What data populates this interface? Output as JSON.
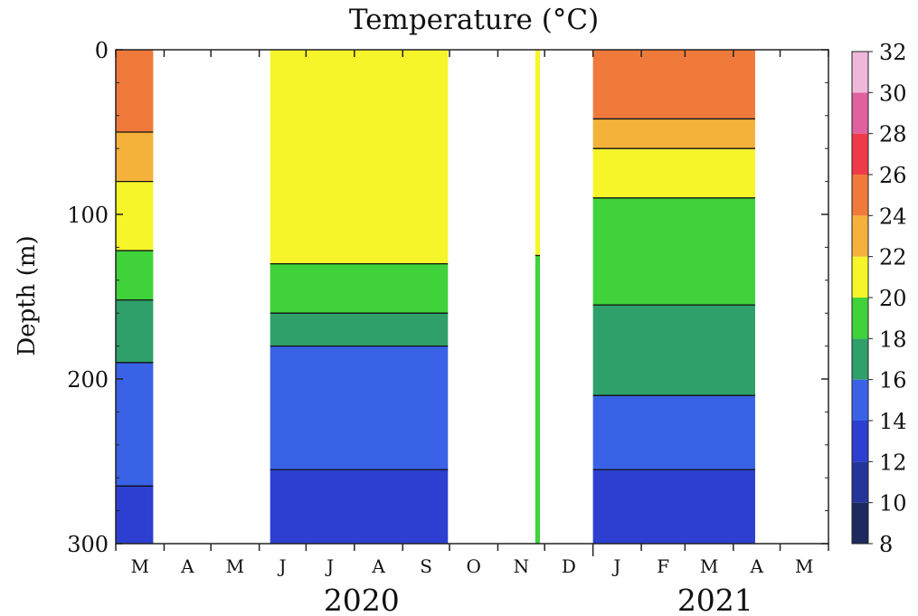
{
  "chart_data": {
    "type": "heatmap",
    "title": "Temperature (°C)",
    "ylabel": "Depth (m)",
    "xlabel": "",
    "ylim": [
      300,
      0
    ],
    "y_ticks": [
      "0",
      "100",
      "200",
      "300"
    ],
    "months": [
      "M",
      "A",
      "M",
      "J",
      "J",
      "A",
      "S",
      "O",
      "N",
      "D",
      "J",
      "F",
      "M",
      "A",
      "M"
    ],
    "years": [
      "2020",
      "2021"
    ],
    "colorbar": {
      "ticks": [
        "32",
        "30",
        "28",
        "26",
        "24",
        "22",
        "20",
        "18",
        "16",
        "14",
        "12",
        "10",
        "8"
      ],
      "levels": [
        {
          "from": 8,
          "to": 10,
          "color": "#1c2a5e"
        },
        {
          "from": 10,
          "to": 12,
          "color": "#23349a"
        },
        {
          "from": 12,
          "to": 14,
          "color": "#2c3fd0"
        },
        {
          "from": 14,
          "to": 16,
          "color": "#3a62e6"
        },
        {
          "from": 16,
          "to": 18,
          "color": "#2fa06a"
        },
        {
          "from": 18,
          "to": 20,
          "color": "#3fd23a"
        },
        {
          "from": 20,
          "to": 22,
          "color": "#f5f52a"
        },
        {
          "from": 22,
          "to": 24,
          "color": "#f5b23a"
        },
        {
          "from": 24,
          "to": 26,
          "color": "#f07a3a"
        },
        {
          "from": 26,
          "to": 28,
          "color": "#f03a4a"
        },
        {
          "from": 28,
          "to": 30,
          "color": "#e060a0"
        },
        {
          "from": 30,
          "to": 32,
          "color": "#f0b8d8"
        }
      ]
    },
    "series": [
      {
        "x_range": [
          "2020-03-01",
          "2020-03-25"
        ],
        "isotherm_depths_m": {
          "24": 50,
          "22": 80,
          "20": 122,
          "18": 152,
          "16": 190,
          "14": 265
        }
      },
      {
        "x_range": [
          "2020-06-08",
          "2020-09-30"
        ],
        "isotherm_depths_m": {
          "20": 130,
          "18": 160,
          "16": 180,
          "14": 255
        }
      },
      {
        "x_range": [
          "2020-11-25",
          "2020-11-28"
        ],
        "isotherm_depths_m": {
          "20": 125
        }
      },
      {
        "x_range": [
          "2021-01-01",
          "2021-04-15"
        ],
        "isotherm_depths_m": {
          "24": 42,
          "22": 60,
          "20": 90,
          "18": 155,
          "16": 210,
          "14": 255
        }
      }
    ]
  }
}
